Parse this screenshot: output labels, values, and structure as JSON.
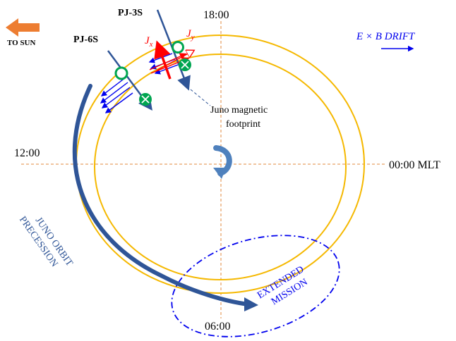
{
  "diagram": {
    "labels": {
      "to_sun": "TO SUN",
      "drift": "E × B DRIFT",
      "pj3s": "PJ-3S",
      "pj6s": "PJ-6S",
      "time_top": "18:00",
      "time_left": "12:00",
      "time_right": "00:00 MLT",
      "time_bottom": "06:00",
      "footprint_line1": "Juno magnetic",
      "footprint_line2": "footprint",
      "jx": "J",
      "jx_sub": "x",
      "jy": "J",
      "jy_sub": "y",
      "precession_line1": "JUNO ORBIT",
      "precession_line2": "PRECESSION",
      "extended_line1": "EXTENDED",
      "extended_line2": "MISSION"
    },
    "colors": {
      "sun_arrow": "#ed7d31",
      "orbit_rings": "#f5b800",
      "axes": "#e08a3c",
      "trajectory": "#2f5597",
      "current_red": "#ff0000",
      "drift_blue": "#0000ee",
      "marker_green": "#00a550",
      "precession_text": "#2f5597"
    },
    "icons": {
      "sun_arrow": "left-arrow-icon",
      "drift_arrow": "right-arrow-icon",
      "rotation": "curved-rotation-arrow-icon",
      "marker_out": "circle-icon",
      "marker_in": "circled-x-icon"
    }
  }
}
